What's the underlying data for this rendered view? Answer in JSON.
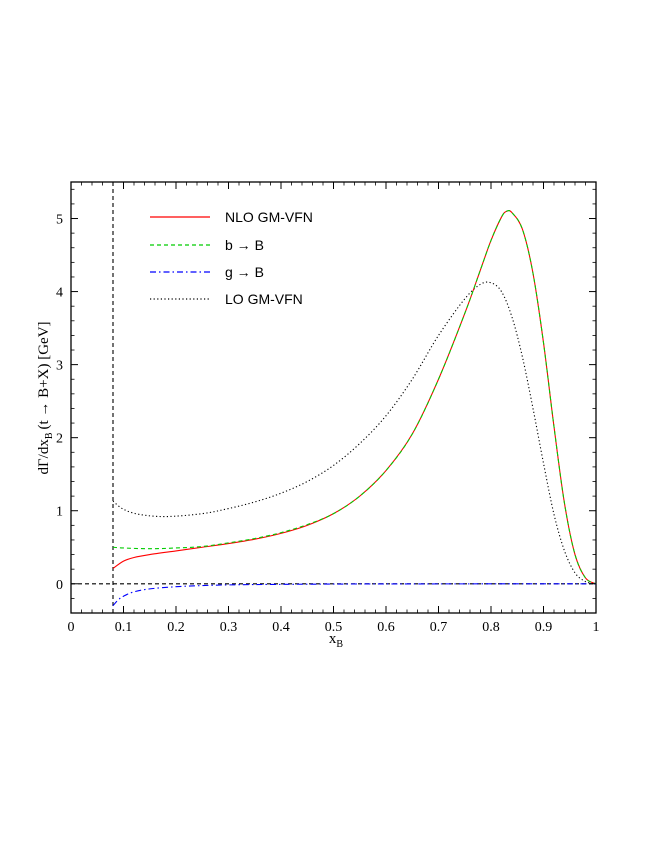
{
  "chart_data": {
    "type": "line",
    "xlabel": "x",
    "xlabel_sub": "B",
    "ylabel_parts": [
      "dΓ/dx",
      "B",
      "(t → B+X)  [GeV]"
    ],
    "xlim": [
      0,
      1
    ],
    "ylim": [
      -0.4,
      5.5
    ],
    "x_ticks": [
      "0",
      "0.1",
      "0.2",
      "0.3",
      "0.4",
      "0.5",
      "0.6",
      "0.7",
      "0.8",
      "0.9",
      "1"
    ],
    "x_tick_values": [
      0,
      0.1,
      0.2,
      0.3,
      0.4,
      0.5,
      0.6,
      0.7,
      0.8,
      0.9,
      1.0
    ],
    "y_ticks": [
      "0",
      "1",
      "2",
      "3",
      "4",
      "5"
    ],
    "y_tick_values": [
      0,
      1,
      2,
      3,
      4,
      5
    ],
    "reference_lines": {
      "vertical_x": 0.08,
      "horizontal_y": 0
    },
    "legend_placement": "top-left",
    "grid": false,
    "series": [
      {
        "name": "NLO  GM-VFN",
        "color": "#ff0000",
        "dash": "solid",
        "points": [
          [
            0.08,
            0.21
          ],
          [
            0.1,
            0.31
          ],
          [
            0.12,
            0.36
          ],
          [
            0.15,
            0.4
          ],
          [
            0.2,
            0.45
          ],
          [
            0.25,
            0.5
          ],
          [
            0.3,
            0.55
          ],
          [
            0.35,
            0.61
          ],
          [
            0.4,
            0.69
          ],
          [
            0.45,
            0.8
          ],
          [
            0.5,
            0.96
          ],
          [
            0.55,
            1.2
          ],
          [
            0.6,
            1.55
          ],
          [
            0.65,
            2.05
          ],
          [
            0.7,
            2.8
          ],
          [
            0.75,
            3.7
          ],
          [
            0.78,
            4.3
          ],
          [
            0.8,
            4.7
          ],
          [
            0.82,
            5.02
          ],
          [
            0.83,
            5.1
          ],
          [
            0.84,
            5.08
          ],
          [
            0.86,
            4.85
          ],
          [
            0.88,
            4.25
          ],
          [
            0.9,
            3.3
          ],
          [
            0.92,
            2.15
          ],
          [
            0.94,
            1.1
          ],
          [
            0.96,
            0.4
          ],
          [
            0.98,
            0.08
          ],
          [
            1.0,
            0.0
          ]
        ]
      },
      {
        "name": "b → B",
        "color": "#00cc00",
        "dash": "dashed",
        "points": [
          [
            0.08,
            0.5
          ],
          [
            0.1,
            0.49
          ],
          [
            0.15,
            0.48
          ],
          [
            0.2,
            0.49
          ],
          [
            0.25,
            0.51
          ],
          [
            0.3,
            0.56
          ],
          [
            0.35,
            0.62
          ],
          [
            0.4,
            0.7
          ],
          [
            0.45,
            0.81
          ],
          [
            0.5,
            0.96
          ],
          [
            0.55,
            1.2
          ],
          [
            0.6,
            1.55
          ],
          [
            0.65,
            2.05
          ],
          [
            0.7,
            2.8
          ],
          [
            0.75,
            3.7
          ],
          [
            0.78,
            4.3
          ],
          [
            0.8,
            4.7
          ],
          [
            0.82,
            5.02
          ],
          [
            0.83,
            5.1
          ],
          [
            0.84,
            5.08
          ],
          [
            0.86,
            4.85
          ],
          [
            0.88,
            4.25
          ],
          [
            0.9,
            3.3
          ],
          [
            0.92,
            2.15
          ],
          [
            0.94,
            1.1
          ],
          [
            0.96,
            0.4
          ],
          [
            0.98,
            0.08
          ],
          [
            1.0,
            0.0
          ]
        ]
      },
      {
        "name": "g → B",
        "color": "#0000ff",
        "dash": "dashdot",
        "points": [
          [
            0.08,
            -0.3
          ],
          [
            0.09,
            -0.22
          ],
          [
            0.1,
            -0.17
          ],
          [
            0.12,
            -0.11
          ],
          [
            0.15,
            -0.07
          ],
          [
            0.2,
            -0.04
          ],
          [
            0.25,
            -0.025
          ],
          [
            0.3,
            -0.015
          ],
          [
            0.4,
            -0.008
          ],
          [
            0.5,
            -0.004
          ],
          [
            0.6,
            -0.002
          ],
          [
            0.8,
            -0.001
          ],
          [
            1.0,
            0.0
          ]
        ]
      },
      {
        "name": "LO  GM-VFN",
        "color": "#000000",
        "dash": "dotted",
        "points": [
          [
            0.08,
            1.13
          ],
          [
            0.1,
            1.02
          ],
          [
            0.13,
            0.95
          ],
          [
            0.18,
            0.92
          ],
          [
            0.25,
            0.96
          ],
          [
            0.3,
            1.03
          ],
          [
            0.35,
            1.12
          ],
          [
            0.4,
            1.24
          ],
          [
            0.45,
            1.4
          ],
          [
            0.5,
            1.62
          ],
          [
            0.55,
            1.92
          ],
          [
            0.6,
            2.3
          ],
          [
            0.65,
            2.8
          ],
          [
            0.7,
            3.4
          ],
          [
            0.75,
            3.9
          ],
          [
            0.78,
            4.1
          ],
          [
            0.8,
            4.12
          ],
          [
            0.82,
            4.0
          ],
          [
            0.84,
            3.65
          ],
          [
            0.86,
            3.1
          ],
          [
            0.88,
            2.4
          ],
          [
            0.9,
            1.65
          ],
          [
            0.92,
            0.95
          ],
          [
            0.94,
            0.45
          ],
          [
            0.96,
            0.15
          ],
          [
            0.98,
            0.03
          ],
          [
            1.0,
            0.0
          ]
        ]
      }
    ]
  }
}
